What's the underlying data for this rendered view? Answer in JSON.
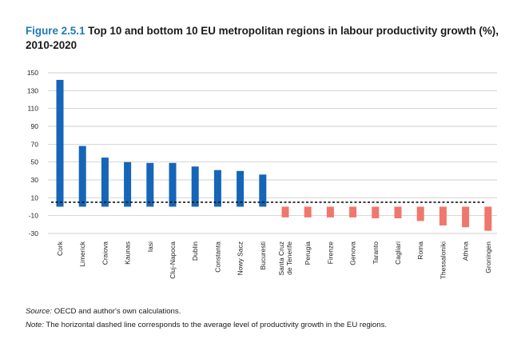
{
  "header": {
    "figure_label": "Figure 2.5.1",
    "title": "Top 10 and bottom 10 EU metropolitan regions in labour productivity growth (%), 2010-2020"
  },
  "footer": {
    "source_label": "Source:",
    "source_text": " OECD and author's own calculations.",
    "note_label": "Note:",
    "note_text": " The horizontal dashed line corresponds to the average level of productivity growth in the EU regions."
  },
  "colors": {
    "positive": "#1565b8",
    "negative": "#f0776c",
    "grid": "#bfbfbf",
    "avg_line": "#111111"
  },
  "chart_data": {
    "type": "bar",
    "title": "Top 10 and bottom 10 EU metropolitan regions in labour productivity growth (%), 2010-2020",
    "xlabel": "",
    "ylabel": "",
    "ylim": [
      -30,
      150
    ],
    "yticks": [
      150,
      130,
      110,
      90,
      70,
      50,
      30,
      10,
      -10,
      -30
    ],
    "grid": true,
    "categories": [
      "Cork",
      "Limerick",
      "Craiova",
      "Kaunas",
      "Iasi",
      "Cluj-Napoca",
      "Dublin",
      "Constanta",
      "Nowy Sacz",
      "Bucuresti",
      "Santa Cruz de Tenerife",
      "Perugia",
      "Firenze",
      "Genova",
      "Taranto",
      "Cagliari",
      "Roma",
      "Thessaloniki",
      "Athina",
      "Groningen"
    ],
    "category_lines": [
      [
        "Cork"
      ],
      [
        "Limerick"
      ],
      [
        "Craiova"
      ],
      [
        "Kaunas"
      ],
      [
        "Iasi"
      ],
      [
        "Cluj-Napoca"
      ],
      [
        "Dublin"
      ],
      [
        "Constanta"
      ],
      [
        "Nowy Sacz"
      ],
      [
        "Bucuresti"
      ],
      [
        "Santa Cruz",
        "de Tenerife"
      ],
      [
        "Perugia"
      ],
      [
        "Firenze"
      ],
      [
        "Genova"
      ],
      [
        "Taranto"
      ],
      [
        "Cagliari"
      ],
      [
        "Roma"
      ],
      [
        "Thessaloniki"
      ],
      [
        "Athina"
      ],
      [
        "Groningen"
      ]
    ],
    "values": [
      142,
      68,
      55,
      50,
      49,
      49,
      45,
      41,
      40,
      36,
      -12,
      -12,
      -12,
      -12,
      -13,
      -13,
      -16,
      -21,
      -23,
      -27
    ],
    "average_line": 5,
    "annotations": [
      "average level of productivity growth in the EU regions (dashed line)"
    ]
  }
}
